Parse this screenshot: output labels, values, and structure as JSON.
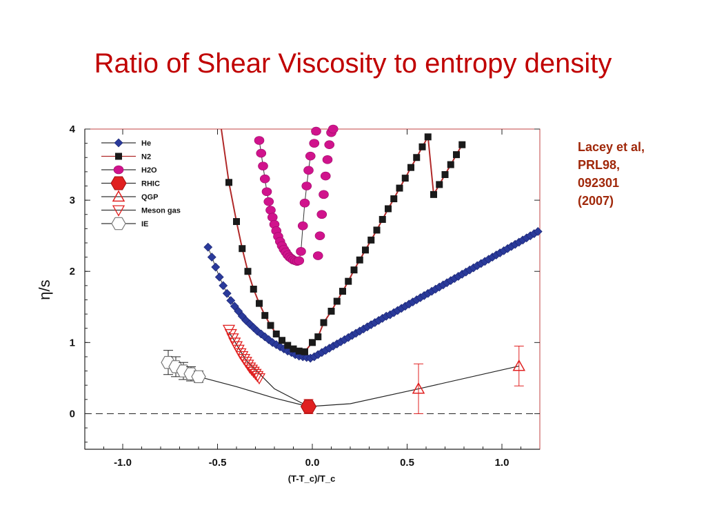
{
  "slide": {
    "title": "Ratio of Shear Viscosity to entropy density",
    "citation": [
      "Lacey et al,",
      "PRL98,",
      "092301",
      "(2007)"
    ]
  },
  "colors": {
    "title": "#c00000",
    "citation": "#a0280a",
    "He": "#2a3a9a",
    "N2": "#1a1a1a",
    "H2O": "#d0138c",
    "RHIC": "#e02020",
    "QGP": "#e02020",
    "MesonGas": "#e02020",
    "IE": "#777777",
    "curve_N2": "#b02828"
  },
  "chart_data": {
    "type": "scatter",
    "xlabel": "(T-T_c)/T_c",
    "ylabel": "η/s",
    "xlim": [
      -1.2,
      1.2
    ],
    "ylim": [
      -0.5,
      4.0
    ],
    "xticks": [
      "-1.0",
      "-0.5",
      "0.0",
      "0.5",
      "1.0"
    ],
    "xtick_values": [
      -1.0,
      -0.5,
      0.0,
      0.5,
      1.0
    ],
    "yticks": [
      "0",
      "1",
      "2",
      "3",
      "4"
    ],
    "ytick_values": [
      0,
      1,
      2,
      3,
      4
    ],
    "grid": false,
    "legend_position": "top-left",
    "legend": [
      {
        "name": "He",
        "marker": "diamond"
      },
      {
        "name": "N2",
        "marker": "square"
      },
      {
        "name": "H2O",
        "marker": "circle"
      },
      {
        "name": "RHIC",
        "marker": "hexagon-filled"
      },
      {
        "name": "QGP",
        "marker": "triangle-up"
      },
      {
        "name": "Meson gas",
        "marker": "triangle-down"
      },
      {
        "name": "IE",
        "marker": "hexagon-open"
      }
    ],
    "series": [
      {
        "name": "He",
        "x": [
          -0.55,
          -0.53,
          -0.51,
          -0.49,
          -0.47,
          -0.45,
          -0.43,
          -0.41,
          -0.39,
          -0.37,
          -0.35,
          -0.33,
          -0.31,
          -0.29,
          -0.27,
          -0.25,
          -0.23,
          -0.21,
          -0.19,
          -0.17,
          -0.15,
          -0.13,
          -0.11,
          -0.09,
          -0.07,
          -0.05,
          -0.03,
          -0.01,
          0.01,
          0.03,
          0.05,
          0.07,
          0.09,
          0.11,
          0.13,
          0.15,
          0.17,
          0.19,
          0.21,
          0.23,
          0.25,
          0.27,
          0.29,
          0.31,
          0.33,
          0.35,
          0.37,
          0.39,
          0.41,
          0.43,
          0.45,
          0.47,
          0.49,
          0.51,
          0.53,
          0.55,
          0.57,
          0.59,
          0.61,
          0.63,
          0.65,
          0.67,
          0.69,
          0.71,
          0.73,
          0.75,
          0.77,
          0.79,
          0.81,
          0.83,
          0.85,
          0.87,
          0.89,
          0.91,
          0.93,
          0.95,
          0.97,
          0.99,
          1.01,
          1.03,
          1.05,
          1.07,
          1.09,
          1.11,
          1.13,
          1.15,
          1.17,
          1.19
        ],
        "y": [
          2.34,
          2.2,
          2.06,
          1.92,
          1.8,
          1.69,
          1.59,
          1.51,
          1.44,
          1.37,
          1.31,
          1.26,
          1.21,
          1.16,
          1.12,
          1.08,
          1.04,
          1.0,
          0.97,
          0.94,
          0.91,
          0.88,
          0.86,
          0.83,
          0.81,
          0.8,
          0.79,
          0.78,
          0.8,
          0.83,
          0.86,
          0.89,
          0.92,
          0.95,
          0.98,
          1.01,
          1.04,
          1.07,
          1.1,
          1.13,
          1.16,
          1.19,
          1.22,
          1.25,
          1.28,
          1.31,
          1.34,
          1.37,
          1.39,
          1.42,
          1.45,
          1.48,
          1.51,
          1.54,
          1.57,
          1.6,
          1.63,
          1.66,
          1.69,
          1.72,
          1.75,
          1.78,
          1.81,
          1.84,
          1.87,
          1.9,
          1.93,
          1.96,
          1.99,
          2.02,
          2.05,
          2.08,
          2.11,
          2.14,
          2.17,
          2.2,
          2.23,
          2.26,
          2.29,
          2.32,
          2.35,
          2.38,
          2.41,
          2.44,
          2.47,
          2.5,
          2.53,
          2.56
        ]
      },
      {
        "name": "N2",
        "x": [
          -0.44,
          -0.4,
          -0.37,
          -0.34,
          -0.31,
          -0.28,
          -0.25,
          -0.22,
          -0.19,
          -0.16,
          -0.13,
          -0.1,
          -0.07,
          -0.04,
          0.0,
          0.03,
          0.06,
          0.1,
          0.13,
          0.16,
          0.19,
          0.22,
          0.25,
          0.28,
          0.31,
          0.34,
          0.37,
          0.4,
          0.43,
          0.46,
          0.49,
          0.52,
          0.55,
          0.58,
          0.61,
          0.64,
          0.67,
          0.7,
          0.73,
          0.76,
          0.79
        ],
        "y": [
          3.25,
          2.7,
          2.32,
          2.0,
          1.75,
          1.55,
          1.38,
          1.24,
          1.12,
          1.03,
          0.96,
          0.91,
          0.88,
          0.87,
          1.0,
          1.08,
          1.28,
          1.44,
          1.58,
          1.72,
          1.86,
          2.02,
          2.16,
          2.3,
          2.44,
          2.58,
          2.73,
          2.88,
          3.02,
          3.17,
          3.31,
          3.46,
          3.6,
          3.75,
          3.89,
          3.08,
          3.22,
          3.36,
          3.5,
          3.64,
          3.78
        ]
      },
      {
        "name": "H2O",
        "x": [
          -0.28,
          -0.27,
          -0.26,
          -0.25,
          -0.24,
          -0.23,
          -0.22,
          -0.21,
          -0.2,
          -0.19,
          -0.18,
          -0.17,
          -0.16,
          -0.15,
          -0.14,
          -0.13,
          -0.12,
          -0.11,
          -0.1,
          -0.09,
          -0.08,
          -0.07,
          -0.06,
          -0.05,
          -0.04,
          -0.03,
          -0.02,
          -0.01,
          0.01,
          0.02,
          0.03,
          0.04,
          0.05,
          0.06,
          0.07,
          0.08,
          0.09,
          0.1,
          0.11
        ],
        "y": [
          3.84,
          3.66,
          3.48,
          3.3,
          3.12,
          2.98,
          2.86,
          2.76,
          2.66,
          2.57,
          2.49,
          2.42,
          2.36,
          2.31,
          2.27,
          2.23,
          2.2,
          2.18,
          2.16,
          2.15,
          2.14,
          2.15,
          2.28,
          2.64,
          2.96,
          3.2,
          3.42,
          3.62,
          3.8,
          3.97,
          2.22,
          2.5,
          2.8,
          3.08,
          3.34,
          3.57,
          3.78,
          3.95,
          4.0
        ]
      },
      {
        "name": "RHIC",
        "x": [
          -0.02
        ],
        "y": [
          0.1
        ],
        "yerr": [
          0.1
        ]
      },
      {
        "name": "QGP",
        "x": [
          0.56,
          1.09
        ],
        "y": [
          0.35,
          0.67
        ],
        "yerr": [
          0.35,
          0.28
        ]
      },
      {
        "name": "Meson gas",
        "x": [
          -0.44,
          -0.43,
          -0.42,
          -0.41,
          -0.4,
          -0.39,
          -0.38,
          -0.37,
          -0.36,
          -0.35,
          -0.34,
          -0.33,
          -0.32,
          -0.31,
          -0.3,
          -0.29,
          -0.28
        ],
        "y": [
          1.18,
          1.12,
          1.06,
          1.0,
          0.95,
          0.9,
          0.85,
          0.81,
          0.77,
          0.73,
          0.69,
          0.65,
          0.62,
          0.59,
          0.56,
          0.53,
          0.5
        ]
      },
      {
        "name": "IE",
        "x": [
          -0.76,
          -0.72,
          -0.68,
          -0.64,
          -0.6
        ],
        "y": [
          0.72,
          0.66,
          0.6,
          0.56,
          0.52
        ],
        "yerr": [
          0.17,
          0.14,
          0.12,
          0.1,
          0.08
        ]
      }
    ],
    "reference_line": {
      "y": 0,
      "style": "dashed"
    }
  }
}
